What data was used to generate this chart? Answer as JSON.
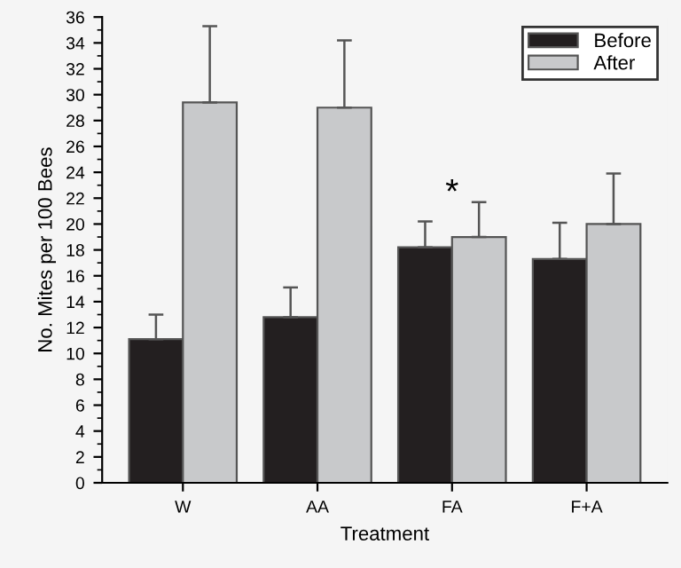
{
  "chart_data": {
    "type": "bar",
    "xlabel": "Treatment",
    "ylabel": "No. Mites per 100 Bees",
    "categories": [
      "W",
      "AA",
      "FA",
      "F+A"
    ],
    "series": [
      {
        "name": "Before",
        "color": "#231f20",
        "values": [
          11.1,
          12.8,
          18.2,
          17.3
        ],
        "errors": [
          [
            11.1,
            13.0
          ],
          [
            12.8,
            15.1
          ],
          [
            18.2,
            20.2
          ],
          [
            17.3,
            20.1
          ]
        ]
      },
      {
        "name": "After",
        "color": "#c8c9cb",
        "values": [
          29.4,
          29.0,
          19.0,
          20.0
        ],
        "errors": [
          [
            29.4,
            35.3
          ],
          [
            29.0,
            34.2
          ],
          [
            19.0,
            21.7
          ],
          [
            20.0,
            23.9
          ]
        ]
      }
    ],
    "ylim": [
      0,
      36
    ],
    "yticks": [
      0,
      2,
      4,
      6,
      8,
      10,
      12,
      14,
      16,
      18,
      20,
      22,
      24,
      26,
      28,
      30,
      32,
      34,
      36
    ],
    "annotations": [
      "*"
    ],
    "legend": "top right",
    "grid": false
  }
}
